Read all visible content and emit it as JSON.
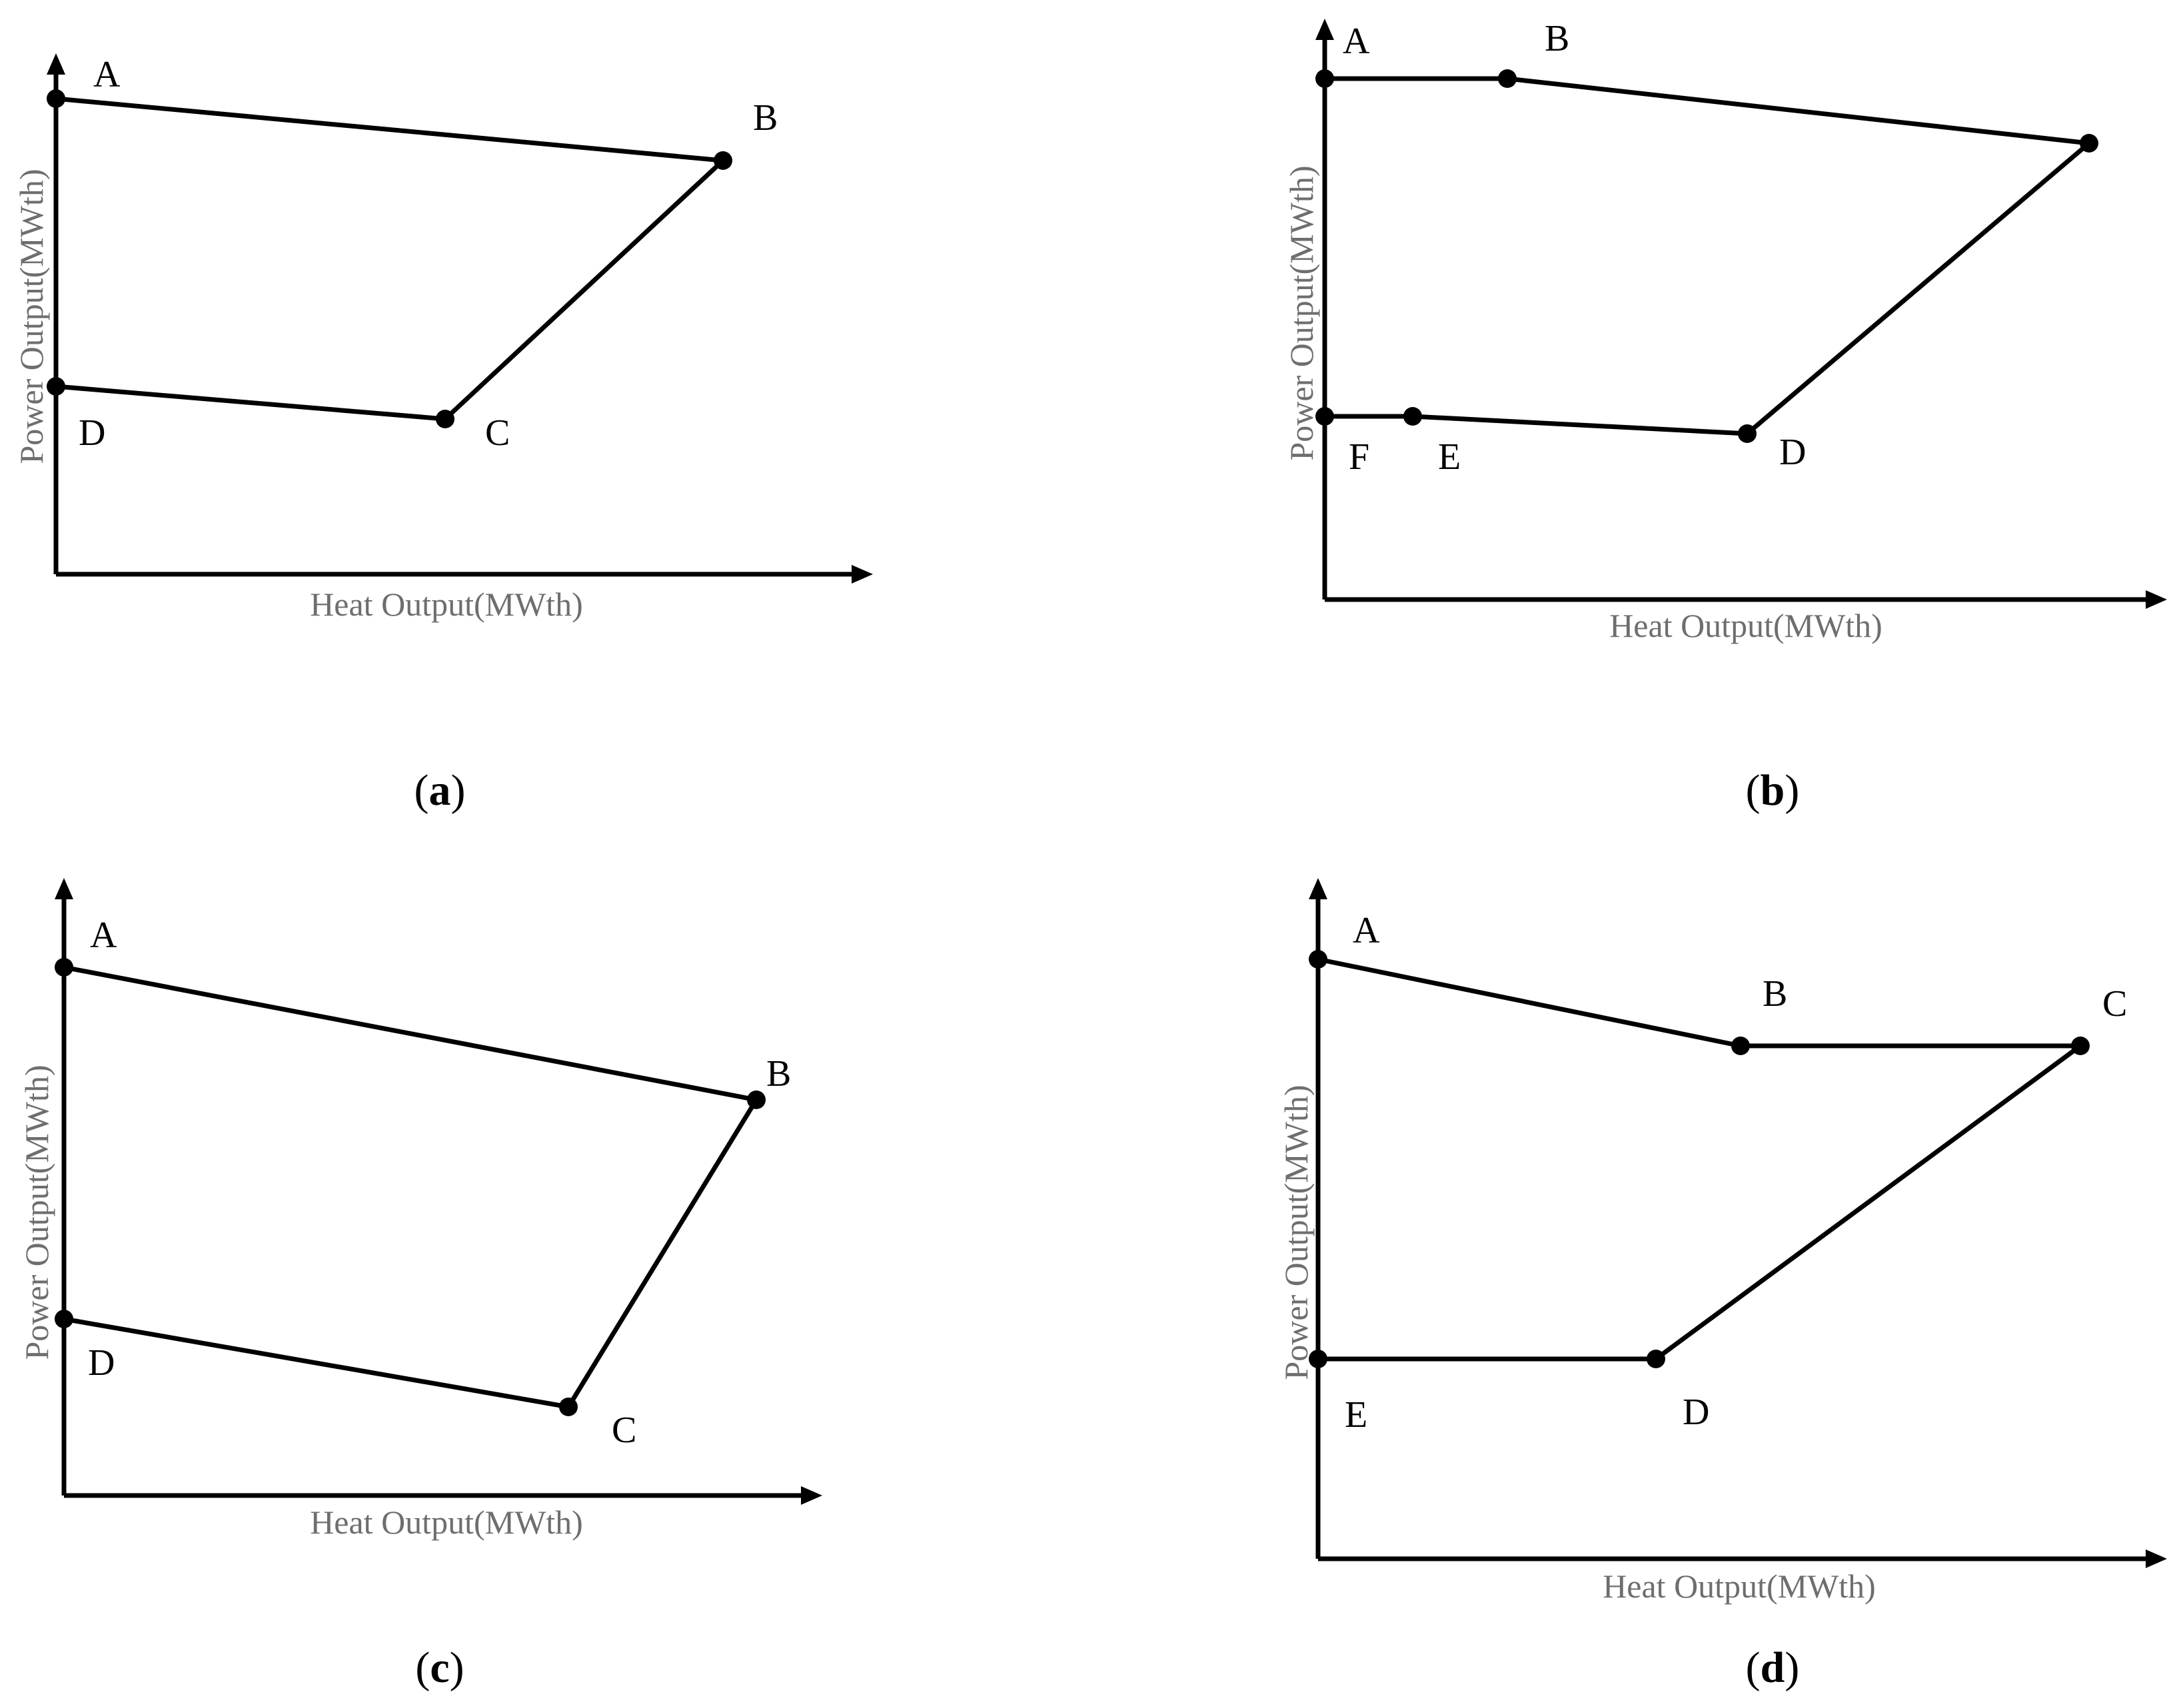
{
  "panels": [
    {
      "id": "a",
      "caption": {
        "open": "(",
        "letter": "a",
        "close": ")"
      },
      "x_axis_label": "Heat Output(MWth)",
      "y_axis_label": "Power Output(MWth)",
      "vertices": [
        {
          "label": "A",
          "heat": 0,
          "power": 1.0
        },
        {
          "label": "B",
          "heat": 0.82,
          "power": 0.87
        },
        {
          "label": "C",
          "heat": 0.48,
          "power": 0.33
        },
        {
          "label": "D",
          "heat": 0,
          "power": 0.4
        }
      ],
      "edges": [
        [
          "A",
          "B"
        ],
        [
          "B",
          "C"
        ],
        [
          "C",
          "D"
        ]
      ]
    },
    {
      "id": "b",
      "caption": {
        "open": "(",
        "letter": "b",
        "close": ")"
      },
      "x_axis_label": "Heat Output(MWth)",
      "y_axis_label": "Power Output(MWth)",
      "vertices": [
        {
          "label": "A",
          "heat": 0,
          "power": 1.0
        },
        {
          "label": "B",
          "heat": 0.22,
          "power": 1.0
        },
        {
          "label": "",
          "heat": 0.91,
          "power": 0.88
        },
        {
          "label": "D",
          "heat": 0.5,
          "power": 0.31
        },
        {
          "label": "E",
          "heat": 0.11,
          "power": 0.34
        },
        {
          "label": "F",
          "heat": 0,
          "power": 0.34
        }
      ],
      "edges": [
        [
          "A",
          "B"
        ],
        [
          "B",
          ""
        ],
        [
          "",
          "D"
        ],
        [
          "D",
          "E"
        ],
        [
          "E",
          "F"
        ]
      ]
    },
    {
      "id": "c",
      "caption": {
        "open": "(",
        "letter": "c",
        "close": ")"
      },
      "x_axis_label": "Heat Output(MWth)",
      "y_axis_label": "Power Output(MWth)",
      "vertices": [
        {
          "label": "A",
          "heat": 0,
          "power": 1.0
        },
        {
          "label": "B",
          "heat": 0.93,
          "power": 0.74
        },
        {
          "label": "C",
          "heat": 0.67,
          "power": 0.17
        },
        {
          "label": "D",
          "heat": 0,
          "power": 0.33
        }
      ],
      "edges": [
        [
          "A",
          "B"
        ],
        [
          "B",
          "C"
        ],
        [
          "C",
          "D"
        ]
      ]
    },
    {
      "id": "d",
      "caption": {
        "open": "(",
        "letter": "d",
        "close": ")"
      },
      "x_axis_label": "Heat Output(MWth)",
      "y_axis_label": "Power Output(MWth)",
      "vertices": [
        {
          "label": "A",
          "heat": 0,
          "power": 1.0
        },
        {
          "label": "B",
          "heat": 0.5,
          "power": 0.86
        },
        {
          "label": "C",
          "heat": 0.9,
          "power": 0.86
        },
        {
          "label": "D",
          "heat": 0.4,
          "power": 0.33
        },
        {
          "label": "E",
          "heat": 0,
          "power": 0.33
        }
      ],
      "edges": [
        [
          "A",
          "B"
        ],
        [
          "B",
          "C"
        ],
        [
          "C",
          "D"
        ],
        [
          "D",
          "E"
        ]
      ]
    }
  ]
}
